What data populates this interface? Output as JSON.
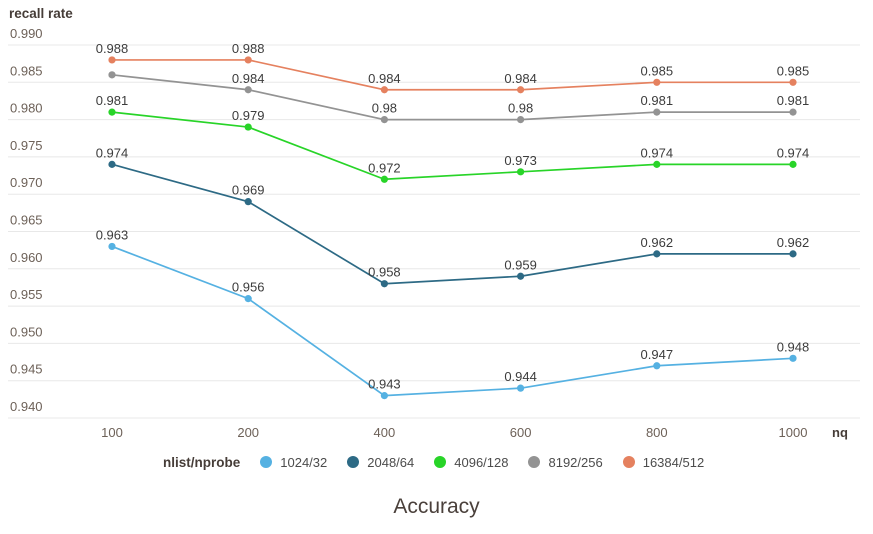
{
  "chart": {
    "y_axis_title": "recall rate",
    "x_axis_title": "nq",
    "bottom_title": "Accuracy",
    "legend_title": "nlist/nprobe"
  },
  "chart_data": {
    "type": "line",
    "title": "Accuracy",
    "xlabel": "nq",
    "ylabel": "recall rate",
    "x_categories": [
      "100",
      "200",
      "400",
      "600",
      "800",
      "1000"
    ],
    "ylim": [
      0.94,
      0.99
    ],
    "y_tick_step": 0.005,
    "grid": true,
    "legend_position": "bottom",
    "legend_title": "nlist/nprobe",
    "colors": {
      "grid": "#e8e8e8",
      "tick_text": "#6d6158",
      "axis_bold_text": "#463d38",
      "data_label_text": "#3c3c3c"
    },
    "series": [
      {
        "name": "1024/32",
        "color": "#55b1e2",
        "values": [
          0.963,
          0.956,
          0.943,
          0.944,
          0.947,
          0.948
        ],
        "labels": [
          "0.963",
          "0.956",
          "0.943",
          "0.944",
          "0.947",
          "0.948"
        ]
      },
      {
        "name": "2048/64",
        "color": "#2d6a85",
        "values": [
          0.974,
          0.969,
          0.958,
          0.959,
          0.962,
          0.962
        ],
        "labels": [
          "0.974",
          "0.969",
          "0.958",
          "0.959",
          "0.962",
          "0.962"
        ]
      },
      {
        "name": "4096/128",
        "color": "#28d428",
        "values": [
          0.981,
          0.979,
          0.972,
          0.973,
          0.974,
          0.974
        ],
        "labels": [
          "0.981",
          "0.979",
          "0.972",
          "0.973",
          "0.974",
          "0.974"
        ]
      },
      {
        "name": "8192/256",
        "color": "#939393",
        "values": [
          0.986,
          0.984,
          0.98,
          0.98,
          0.981,
          0.981
        ],
        "labels": [
          "",
          "0.984",
          "0.98",
          "0.98",
          "0.981",
          "0.981"
        ]
      },
      {
        "name": "16384/512",
        "color": "#e5815f",
        "values": [
          0.988,
          0.988,
          0.984,
          0.984,
          0.985,
          0.985
        ],
        "labels": [
          "0.988",
          "0.988",
          "0.984",
          "0.984",
          "0.985",
          "0.985"
        ]
      }
    ]
  }
}
